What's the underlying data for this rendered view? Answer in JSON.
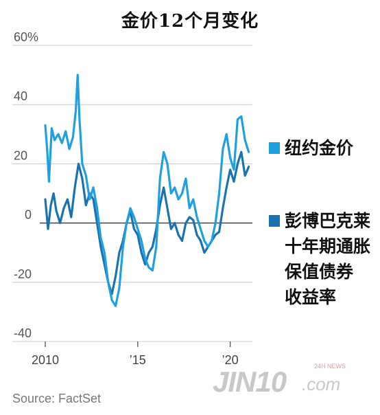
{
  "chart_data": {
    "type": "line",
    "title": "金价12个月变化",
    "ylim": [
      -40,
      60
    ],
    "y_ticks": [
      60,
      40,
      20,
      0,
      -20,
      -40
    ],
    "y_tick_labels": [
      "60%",
      "40",
      "20",
      "0",
      "-20",
      "-40"
    ],
    "x_ticks": [
      2010,
      2015,
      2020
    ],
    "x_tick_labels": [
      "2010",
      "’15",
      "’20"
    ],
    "xlim": [
      2010,
      2021.2
    ],
    "grid": "horizontal",
    "legend_position": "right",
    "series": [
      {
        "name": "纽约金价",
        "color": "#1fa0e0",
        "x": [
          2010.0,
          2010.1,
          2010.2,
          2010.35,
          2010.5,
          2010.7,
          2010.9,
          2011.1,
          2011.3,
          2011.5,
          2011.65,
          2011.75,
          2011.85,
          2012.0,
          2012.2,
          2012.4,
          2012.6,
          2012.8,
          2013.0,
          2013.2,
          2013.4,
          2013.6,
          2013.8,
          2014.0,
          2014.2,
          2014.4,
          2014.6,
          2014.8,
          2015.0,
          2015.2,
          2015.4,
          2015.6,
          2015.8,
          2016.0,
          2016.2,
          2016.4,
          2016.6,
          2016.8,
          2017.0,
          2017.2,
          2017.4,
          2017.6,
          2017.8,
          2018.0,
          2018.2,
          2018.4,
          2018.6,
          2018.8,
          2019.0,
          2019.2,
          2019.4,
          2019.6,
          2019.8,
          2020.0,
          2020.2,
          2020.4,
          2020.6,
          2020.8,
          2021.0
        ],
        "y": [
          33,
          25,
          14,
          32,
          28,
          30,
          27,
          31,
          25,
          29,
          38,
          50,
          35,
          20,
          16,
          8,
          12,
          5,
          -5,
          -10,
          -20,
          -26,
          -28,
          -22,
          -8,
          0,
          5,
          2,
          -2,
          -6,
          -12,
          -15,
          -16,
          -8,
          15,
          24,
          20,
          10,
          12,
          8,
          10,
          15,
          5,
          8,
          2,
          -2,
          -6,
          -8,
          -6,
          0,
          10,
          25,
          30,
          22,
          18,
          35,
          36,
          28,
          24
        ]
      },
      {
        "name": "彭博巴克莱十年期通胀保值债券收益率",
        "color": "#1a73b0",
        "x": [
          2010.0,
          2010.15,
          2010.3,
          2010.45,
          2010.6,
          2010.8,
          2011.0,
          2011.2,
          2011.4,
          2011.6,
          2011.8,
          2012.0,
          2012.2,
          2012.4,
          2012.6,
          2012.8,
          2013.0,
          2013.2,
          2013.4,
          2013.6,
          2013.8,
          2014.0,
          2014.2,
          2014.4,
          2014.6,
          2014.8,
          2015.0,
          2015.2,
          2015.4,
          2015.6,
          2015.8,
          2016.0,
          2016.2,
          2016.4,
          2016.6,
          2016.8,
          2017.0,
          2017.2,
          2017.4,
          2017.6,
          2017.8,
          2018.0,
          2018.2,
          2018.4,
          2018.6,
          2018.8,
          2019.0,
          2019.2,
          2019.4,
          2019.6,
          2019.8,
          2020.0,
          2020.2,
          2020.4,
          2020.6,
          2020.8,
          2021.0
        ],
        "y": [
          8,
          -2,
          6,
          10,
          4,
          0,
          5,
          8,
          2,
          12,
          20,
          15,
          6,
          10,
          8,
          0,
          -8,
          -14,
          -20,
          -24,
          -18,
          -10,
          -6,
          0,
          4,
          -2,
          -4,
          -10,
          -14,
          -10,
          -8,
          -2,
          6,
          12,
          5,
          -2,
          0,
          -4,
          -6,
          0,
          2,
          1,
          -4,
          -6,
          -10,
          -8,
          -6,
          -4,
          -3,
          5,
          12,
          18,
          14,
          20,
          24,
          16,
          19
        ]
      }
    ]
  },
  "legend": {
    "gold": "纽约金价",
    "tips_lines": [
      "彭博巴克莱",
      "十年期通胀",
      "保值债券",
      "收益率"
    ]
  },
  "source": "Source: FactSet",
  "watermark": {
    "main": "JIN10",
    "suffix": ".com",
    "badge": "24H NEWS"
  }
}
